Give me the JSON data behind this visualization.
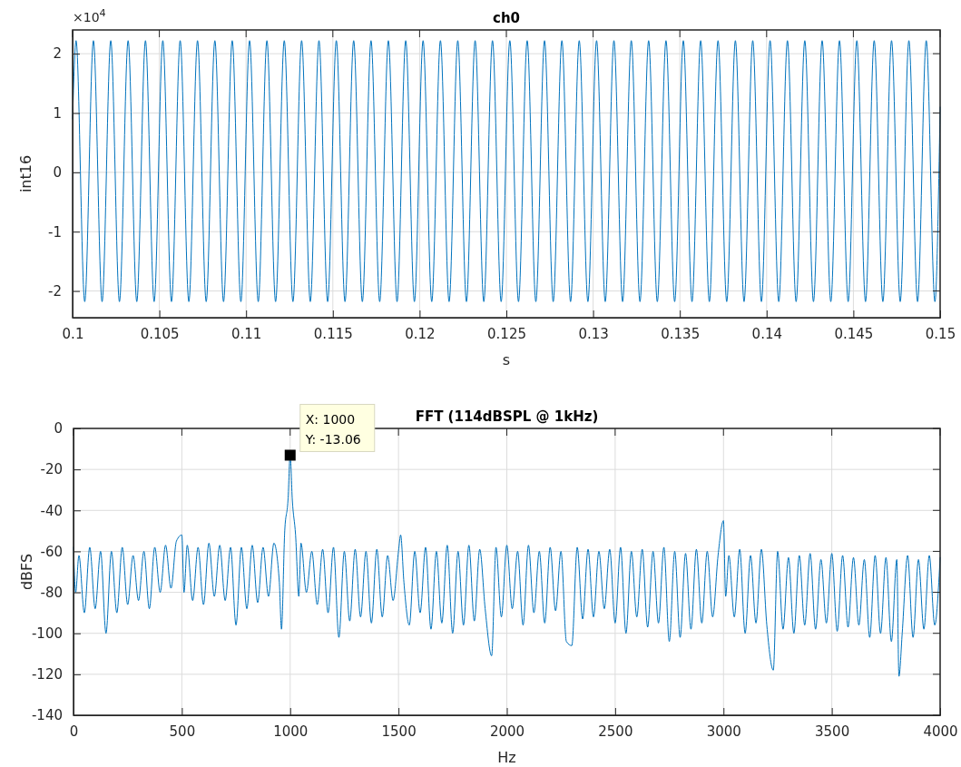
{
  "chart_data": [
    {
      "type": "line",
      "title": "ch0",
      "xlabel": "s",
      "ylabel": "int16",
      "color": "#0072bd",
      "grid": true,
      "xlim": [
        0.1,
        0.15
      ],
      "xticks": [
        0.1,
        0.105,
        0.11,
        0.115,
        0.12,
        0.125,
        0.13,
        0.135,
        0.14,
        0.145,
        0.15
      ],
      "ylim": [
        -2.45,
        2.4
      ],
      "yticks": [
        -2,
        -1,
        0,
        1,
        2
      ],
      "annotations": [
        "×10$^{4}$"
      ],
      "x": [
        0.1,
        0.1002,
        0.1007,
        0.1012,
        0.1017,
        0.1022,
        0.1027,
        0.1032,
        0.1037,
        0.1042,
        0.1047,
        0.1052,
        0.1057,
        0.1062,
        0.1067,
        0.1072,
        0.1077,
        0.1082,
        0.1087,
        0.1092,
        0.1097,
        0.1102,
        0.1107,
        0.1112,
        0.1117,
        0.1122,
        0.1127,
        0.1132,
        0.1137,
        0.1142,
        0.1147,
        0.1152,
        0.1157,
        0.1162,
        0.1167,
        0.1172,
        0.1177,
        0.1182,
        0.1187,
        0.1192,
        0.1197,
        0.1202,
        0.1207,
        0.1212,
        0.1217,
        0.1222,
        0.1227,
        0.1232,
        0.1237,
        0.1242,
        0.1247,
        0.1252,
        0.1257,
        0.1262,
        0.1267,
        0.1272,
        0.1277,
        0.1282,
        0.1287,
        0.1292,
        0.1297,
        0.1302,
        0.1307,
        0.1312,
        0.1317,
        0.1322,
        0.1327,
        0.1332,
        0.1337,
        0.1342,
        0.1347,
        0.1352,
        0.1357,
        0.1362,
        0.1367,
        0.1372,
        0.1377,
        0.1382,
        0.1387,
        0.1392,
        0.1397,
        0.1402,
        0.1407,
        0.1412,
        0.1417,
        0.1422,
        0.1427,
        0.1432,
        0.1437,
        0.1442,
        0.1447,
        0.1452,
        0.1457,
        0.1462,
        0.1467,
        0.1472,
        0.1477,
        0.1482,
        0.1487,
        0.1492,
        0.1497,
        0.15
      ],
      "values": [
        0.9,
        2.22,
        -2.18,
        2.22,
        -2.18,
        2.22,
        -2.18,
        2.22,
        -2.18,
        2.22,
        -2.18,
        2.22,
        -2.18,
        2.22,
        -2.18,
        2.22,
        -2.18,
        2.22,
        -2.18,
        2.22,
        -2.18,
        2.22,
        -2.18,
        2.22,
        -2.18,
        2.22,
        -2.18,
        2.22,
        -2.18,
        2.22,
        -2.18,
        2.22,
        -2.18,
        2.22,
        -2.18,
        2.22,
        -2.18,
        2.22,
        -2.18,
        2.22,
        -2.18,
        2.22,
        -2.18,
        2.22,
        -2.18,
        2.22,
        -2.18,
        2.22,
        -2.18,
        2.22,
        -2.18,
        2.22,
        -2.18,
        2.22,
        -2.18,
        2.22,
        -2.18,
        2.22,
        -2.18,
        2.22,
        -2.18,
        2.22,
        -2.18,
        2.22,
        -2.18,
        2.22,
        -2.18,
        2.22,
        -2.18,
        2.22,
        -2.18,
        2.22,
        -2.18,
        2.22,
        -2.18,
        2.22,
        -2.18,
        2.22,
        -2.18,
        2.22,
        -2.18,
        2.22,
        -2.18,
        2.22,
        -2.18,
        2.22,
        -2.18,
        2.22,
        -2.18,
        2.22,
        -2.18,
        2.22,
        -2.18,
        2.22,
        -2.18,
        2.22,
        -2.18,
        2.22,
        -2.18,
        2.22,
        -2.18,
        1.1
      ]
    },
    {
      "type": "line",
      "title": "FFT (114dBSPL @ 1kHz)",
      "xlabel": "Hz",
      "ylabel": "dBFS",
      "color": "#0072bd",
      "grid": true,
      "xlim": [
        0,
        4000
      ],
      "xticks": [
        0,
        500,
        1000,
        1500,
        2000,
        2500,
        3000,
        3500,
        4000
      ],
      "ylim": [
        -140,
        0
      ],
      "yticks": [
        -140,
        -120,
        -100,
        -80,
        -60,
        -40,
        -20,
        0
      ],
      "annotations": [
        {
          "text": "X: 1000\nY: -13.06",
          "x": 1000,
          "y": -13.06
        }
      ],
      "x": [
        0,
        10,
        25,
        50,
        75,
        100,
        125,
        150,
        175,
        200,
        225,
        250,
        275,
        300,
        325,
        350,
        375,
        400,
        425,
        450,
        475,
        500,
        510,
        525,
        550,
        575,
        600,
        625,
        650,
        675,
        700,
        725,
        750,
        775,
        800,
        825,
        850,
        875,
        900,
        925,
        950,
        960,
        975,
        990,
        1000,
        1010,
        1025,
        1040,
        1050,
        1075,
        1100,
        1125,
        1150,
        1175,
        1200,
        1225,
        1250,
        1275,
        1300,
        1325,
        1350,
        1375,
        1400,
        1425,
        1450,
        1475,
        1500,
        1510,
        1525,
        1550,
        1575,
        1600,
        1625,
        1650,
        1675,
        1700,
        1725,
        1750,
        1775,
        1800,
        1825,
        1850,
        1875,
        1900,
        1930,
        1950,
        1975,
        2000,
        2025,
        2050,
        2075,
        2100,
        2125,
        2150,
        2175,
        2200,
        2225,
        2250,
        2275,
        2300,
        2325,
        2350,
        2375,
        2400,
        2425,
        2450,
        2475,
        2500,
        2525,
        2550,
        2575,
        2600,
        2625,
        2650,
        2675,
        2700,
        2725,
        2750,
        2775,
        2800,
        2825,
        2850,
        2875,
        2900,
        2925,
        2950,
        2975,
        3000,
        3010,
        3025,
        3050,
        3075,
        3100,
        3125,
        3150,
        3175,
        3200,
        3230,
        3250,
        3275,
        3300,
        3325,
        3350,
        3375,
        3400,
        3425,
        3450,
        3475,
        3500,
        3525,
        3550,
        3575,
        3600,
        3625,
        3650,
        3675,
        3700,
        3725,
        3750,
        3775,
        3800,
        3810,
        3825,
        3850,
        3875,
        3900,
        3925,
        3950,
        3975,
        4000
      ],
      "values": [
        -58,
        -80,
        -62,
        -90,
        -58,
        -88,
        -60,
        -100,
        -60,
        -90,
        -58,
        -86,
        -62,
        -84,
        -60,
        -88,
        -58,
        -80,
        -57,
        -78,
        -55,
        -52,
        -80,
        -57,
        -84,
        -58,
        -86,
        -56,
        -82,
        -57,
        -84,
        -58,
        -96,
        -58,
        -88,
        -57,
        -85,
        -58,
        -82,
        -56,
        -75,
        -98,
        -50,
        -35,
        -13.06,
        -35,
        -52,
        -82,
        -56,
        -80,
        -60,
        -86,
        -59,
        -90,
        -58,
        -102,
        -60,
        -94,
        -59,
        -92,
        -60,
        -95,
        -59,
        -92,
        -62,
        -84,
        -60,
        -52,
        -75,
        -96,
        -60,
        -90,
        -58,
        -98,
        -60,
        -95,
        -57,
        -100,
        -60,
        -96,
        -57,
        -94,
        -59,
        -88,
        -111,
        -58,
        -92,
        -57,
        -88,
        -60,
        -96,
        -57,
        -90,
        -60,
        -95,
        -58,
        -89,
        -60,
        -104,
        -106,
        -58,
        -93,
        -59,
        -92,
        -60,
        -88,
        -59,
        -95,
        -58,
        -100,
        -60,
        -92,
        -59,
        -97,
        -60,
        -95,
        -58,
        -104,
        -60,
        -102,
        -61,
        -98,
        -59,
        -95,
        -60,
        -92,
        -62,
        -45,
        -82,
        -62,
        -92,
        -59,
        -100,
        -62,
        -95,
        -59,
        -96,
        -118,
        -60,
        -98,
        -63,
        -100,
        -62,
        -96,
        -61,
        -98,
        -64,
        -95,
        -61,
        -99,
        -62,
        -97,
        -63,
        -96,
        -64,
        -102,
        -62,
        -100,
        -63,
        -104,
        -64,
        -121,
        -100,
        -62,
        -102,
        -64,
        -98,
        -62,
        -96,
        -63
      ]
    }
  ]
}
